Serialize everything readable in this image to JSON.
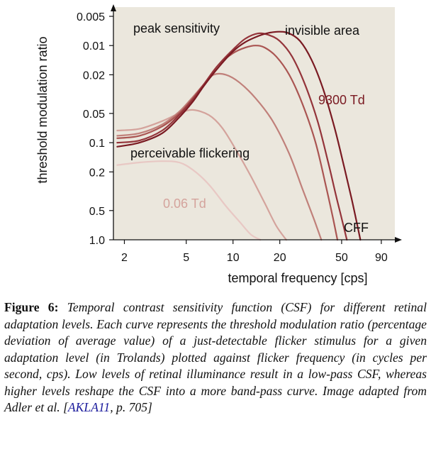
{
  "chart_data": {
    "type": "line",
    "title": "",
    "xlabel": "temporal frequency [cps]",
    "ylabel": "threshold modulation ratio",
    "x_scale": "log",
    "y_scale": "log",
    "y_inverted": true,
    "xlim": [
      1.7,
      110
    ],
    "ylim": [
      1.0,
      0.005
    ],
    "x_ticks": [
      2,
      5,
      10,
      20,
      50,
      90
    ],
    "x_tick_labels": [
      "2",
      "5",
      "10",
      "20",
      "50",
      "90"
    ],
    "y_ticks": [
      0.005,
      0.01,
      0.02,
      0.05,
      0.1,
      0.2,
      0.5,
      1.0
    ],
    "y_tick_labels": [
      "0.005",
      "0.01",
      "0.02",
      "0.05",
      "0.1",
      "0.2",
      "0.5",
      "1.0"
    ],
    "grid": false,
    "background": "#ebe7dd",
    "series": [
      {
        "color": "#e8c8c4",
        "x": [
          1.8,
          2.5,
          3.5,
          4.5,
          5.5,
          7,
          9,
          11,
          13,
          15
        ],
        "y": [
          0.17,
          0.16,
          0.155,
          0.16,
          0.19,
          0.27,
          0.45,
          0.65,
          0.88,
          1.0
        ]
      },
      {
        "color": "#d4a39c",
        "x": [
          1.8,
          2.5,
          3.5,
          4.5,
          5.5,
          7,
          8.5,
          10.5,
          13,
          16,
          19,
          22
        ],
        "y": [
          0.075,
          0.072,
          0.06,
          0.05,
          0.046,
          0.052,
          0.07,
          0.12,
          0.22,
          0.42,
          0.72,
          1.0
        ]
      },
      {
        "color": "#c0807a",
        "x": [
          1.8,
          2.5,
          3.5,
          4.5,
          5.5,
          6.5,
          7.5,
          9,
          11,
          14,
          18,
          23,
          28,
          33,
          37
        ],
        "y": [
          0.085,
          0.08,
          0.065,
          0.048,
          0.034,
          0.025,
          0.02,
          0.02,
          0.024,
          0.035,
          0.06,
          0.13,
          0.3,
          0.6,
          1.0
        ]
      },
      {
        "color": "#aa5552",
        "x": [
          1.8,
          2.5,
          3.5,
          4.5,
          5.5,
          6.5,
          8,
          10,
          12,
          14,
          16,
          19,
          23,
          28,
          34,
          40,
          44,
          47
        ],
        "y": [
          0.09,
          0.085,
          0.068,
          0.05,
          0.035,
          0.025,
          0.016,
          0.012,
          0.0105,
          0.01,
          0.0105,
          0.013,
          0.02,
          0.04,
          0.1,
          0.3,
          0.6,
          1.0
        ]
      },
      {
        "color": "#94343a",
        "x": [
          1.8,
          2.5,
          3.5,
          4.5,
          5.5,
          6.5,
          8,
          10,
          12,
          14.5,
          17,
          20,
          24,
          29,
          35,
          41,
          46,
          50,
          54
        ],
        "y": [
          0.1,
          0.095,
          0.075,
          0.052,
          0.036,
          0.025,
          0.016,
          0.011,
          0.0085,
          0.0075,
          0.0078,
          0.009,
          0.013,
          0.025,
          0.06,
          0.16,
          0.35,
          0.6,
          1.0
        ]
      },
      {
        "color": "#7a1a22",
        "x": [
          1.8,
          2.5,
          3.5,
          4.5,
          5.5,
          6.5,
          8,
          10,
          12,
          14.5,
          17,
          20,
          23,
          27,
          32,
          38,
          45,
          52,
          58,
          63,
          66
        ],
        "y": [
          0.11,
          0.1,
          0.08,
          0.055,
          0.038,
          0.026,
          0.017,
          0.0115,
          0.0092,
          0.008,
          0.0074,
          0.0072,
          0.0075,
          0.009,
          0.014,
          0.028,
          0.07,
          0.18,
          0.38,
          0.7,
          1.0
        ]
      }
    ],
    "annotations": [
      {
        "text": "peak sensitivity",
        "color": "#111111"
      },
      {
        "text": "invisible area",
        "color": "#111111"
      },
      {
        "text": "9300 Td",
        "color": "#7a1a22"
      },
      {
        "text": "perceivable flickering",
        "color": "#111111"
      },
      {
        "text": "0.06 Td",
        "color": "#d4a39c"
      },
      {
        "text": "CFF",
        "color": "#111111"
      }
    ]
  },
  "caption": {
    "label": "Figure 6:",
    "text": "Temporal contrast sensitivity function (CSF) for different retinal adaptation levels. Each curve represents the threshold modulation ratio (percentage deviation of average value) of a just-detectable flicker stimulus for a given adaptation level (in Trolands) plotted against flicker frequency (in cycles per second, cps). Low levels of retinal illuminance result in a low-pass CSF, whereas higher levels reshape the CSF into a more band-pass curve. Image adapted from Adler et al. [",
    "cite": "AKLA11",
    "cite_suffix": ", p. 705]"
  }
}
